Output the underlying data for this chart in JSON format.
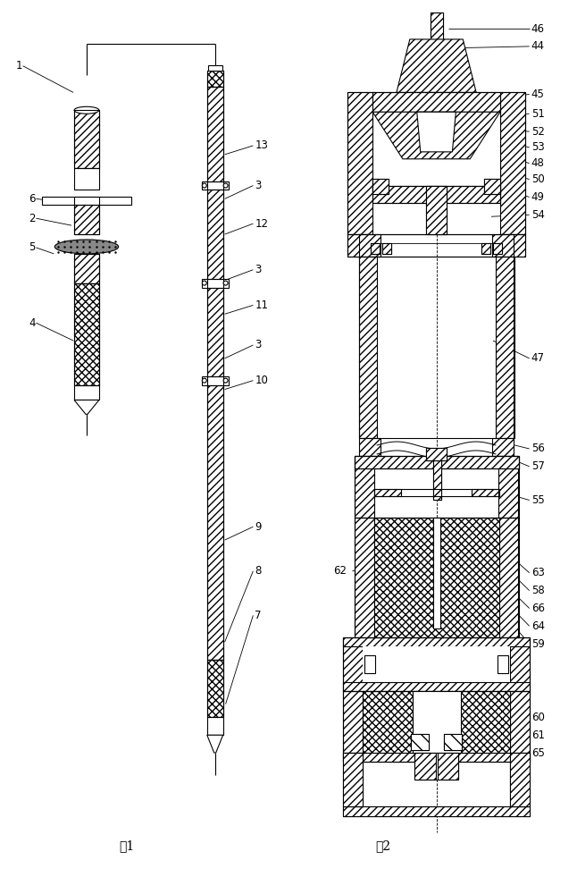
{
  "fig_width": 6.46,
  "fig_height": 10.0,
  "bg_color": "#ffffff",
  "line_color": "#000000",
  "fig1_label": "图1",
  "fig2_label": "图2",
  "label_fs": 8.5,
  "leader_lw": 0.6
}
